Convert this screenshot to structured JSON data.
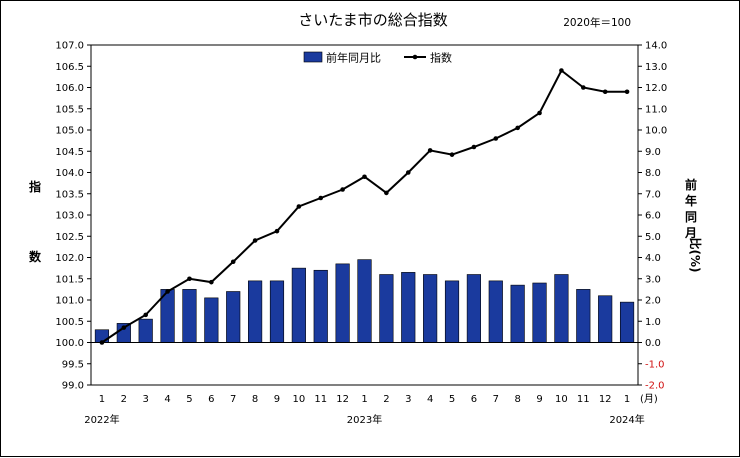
{
  "chart_data": {
    "type": "bar+line",
    "title": "さいたま市の総合指数",
    "subtitle": "2020年＝100",
    "categories": [
      "1",
      "2",
      "3",
      "4",
      "5",
      "6",
      "7",
      "8",
      "9",
      "10",
      "11",
      "12",
      "1",
      "2",
      "3",
      "4",
      "5",
      "6",
      "7",
      "8",
      "9",
      "10",
      "11",
      "12",
      "1"
    ],
    "year_labels": [
      {
        "index": 0,
        "label": "2022年"
      },
      {
        "index": 12,
        "label": "2023年"
      },
      {
        "index": 24,
        "label": "2024年"
      }
    ],
    "x_unit": "(月)",
    "y_left": {
      "label": "指数",
      "ticks": [
        "107.0",
        "106.5",
        "106.0",
        "105.5",
        "105.0",
        "104.5",
        "104.0",
        "103.5",
        "103.0",
        "102.5",
        "102.0",
        "101.5",
        "101.0",
        "100.5",
        "100.0",
        "99.5",
        "99.0"
      ],
      "ylim": [
        99.0,
        107.0
      ]
    },
    "y_right": {
      "label": "前年同月比(%)",
      "ticks": [
        "14.0",
        "13.0",
        "12.0",
        "11.0",
        "10.0",
        "9.0",
        "8.0",
        "7.0",
        "6.0",
        "5.0",
        "4.0",
        "3.0",
        "2.0",
        "1.0",
        "0.0",
        "-1.0",
        "-2.0"
      ],
      "ylim": [
        -2.0,
        14.0
      ]
    },
    "series": [
      {
        "name": "前年同月比",
        "type": "bar",
        "axis": "right",
        "color": "#1a3a9e",
        "values": [
          0.6,
          0.9,
          1.1,
          2.5,
          2.5,
          2.1,
          2.4,
          2.9,
          2.9,
          3.5,
          3.4,
          3.7,
          3.9,
          3.2,
          3.3,
          3.2,
          2.9,
          3.2,
          2.9,
          2.7,
          2.8,
          3.2,
          2.5,
          2.2,
          1.9
        ]
      },
      {
        "name": "指数",
        "type": "line",
        "axis": "left",
        "color": "#000000",
        "values": [
          100.0,
          100.35,
          100.65,
          101.2,
          101.5,
          101.42,
          101.9,
          102.4,
          102.62,
          103.2,
          103.4,
          103.6,
          103.9,
          103.52,
          104.0,
          104.52,
          104.42,
          104.6,
          104.8,
          105.05,
          105.4,
          106.4,
          106.0,
          105.9,
          105.9
        ]
      }
    ],
    "legend_position": "top-right",
    "grid": false
  }
}
